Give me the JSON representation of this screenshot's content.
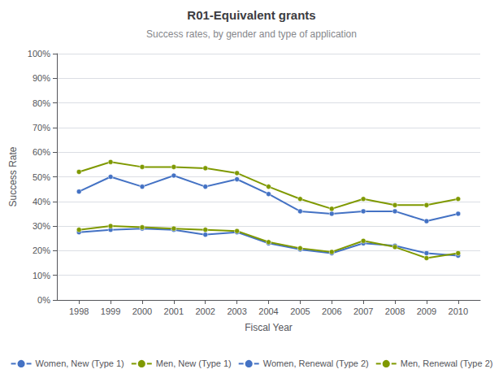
{
  "chart_data": {
    "type": "line",
    "title": "R01-Equivalent grants",
    "subtitle": "Success rates, by gender and type of application",
    "x_label": "Fiscal Year",
    "y_label": "Success Rate",
    "x": [
      1998,
      1999,
      2000,
      2001,
      2002,
      2003,
      2004,
      2005,
      2006,
      2007,
      2008,
      2009,
      2010
    ],
    "series": [
      {
        "name": "Women, New (Type 1)",
        "color": "#4472C4",
        "marker": "circle",
        "values": [
          0.44,
          0.5,
          0.46,
          0.505,
          0.46,
          0.49,
          0.43,
          0.36,
          0.35,
          0.36,
          0.36,
          0.32,
          0.35
        ]
      },
      {
        "name": "Men, New (Type 1)",
        "color": "#7F9900",
        "marker": "circle",
        "values": [
          0.52,
          0.56,
          0.54,
          0.54,
          0.535,
          0.515,
          0.46,
          0.41,
          0.37,
          0.41,
          0.385,
          0.385,
          0.41
        ]
      },
      {
        "name": "Women, Renewal (Type 2)",
        "color": "#4472C4",
        "marker": "circle",
        "values": [
          0.275,
          0.285,
          0.29,
          0.285,
          0.265,
          0.275,
          0.23,
          0.205,
          0.19,
          0.23,
          0.22,
          0.19,
          0.18
        ]
      },
      {
        "name": "Men, Renewal (Type 2)",
        "color": "#7F9900",
        "marker": "circle",
        "values": [
          0.285,
          0.3,
          0.295,
          0.29,
          0.285,
          0.28,
          0.235,
          0.21,
          0.195,
          0.24,
          0.215,
          0.17,
          0.19
        ]
      }
    ],
    "xlim": [
      1997.3,
      2010.7
    ],
    "xticks": [
      1998,
      1999,
      2000,
      2001,
      2002,
      2003,
      2004,
      2005,
      2006,
      2007,
      2008,
      2009,
      2010
    ],
    "ylim": [
      0,
      1.0
    ],
    "yticks": [
      {
        "value": 0.0,
        "label": "0%"
      },
      {
        "value": 0.1,
        "label": "10%"
      },
      {
        "value": 0.2,
        "label": "20%"
      },
      {
        "value": 0.3,
        "label": "30%"
      },
      {
        "value": 0.4,
        "label": "40%"
      },
      {
        "value": 0.5,
        "label": "50%"
      },
      {
        "value": 0.6,
        "label": "60%"
      },
      {
        "value": 0.7,
        "label": "70%"
      },
      {
        "value": 0.8,
        "label": "80%"
      },
      {
        "value": 0.9,
        "label": "90%"
      },
      {
        "value": 1.0,
        "label": "100%"
      }
    ],
    "grid": true,
    "legend": "bottom"
  }
}
